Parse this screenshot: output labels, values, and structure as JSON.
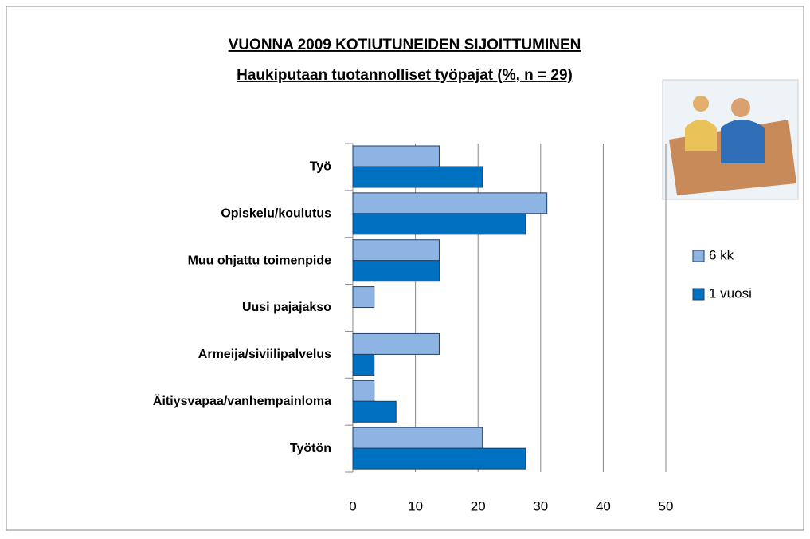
{
  "chart_data": {
    "type": "barh",
    "title": "VUONNA 2009 KOTIUTUNEIDEN SIJOITTUMINEN",
    "subtitle": "Haukiputaan tuotannolliset työpajat  (%,  n = 29)",
    "categories": [
      "Työ",
      "Opiskelu/koulutus",
      "Muu ohjattu toimenpide",
      "Uusi pajajakso",
      "Armeija/siviilipalvelus",
      "Äitiysvapaa/vanhempainloma",
      "Työtön"
    ],
    "series": [
      {
        "name": "6 kk",
        "color": "#8db4e2",
        "values": [
          13.8,
          31,
          13.8,
          3.4,
          13.8,
          3.4,
          20.7
        ]
      },
      {
        "name": "1 vuosi",
        "color": "#0070c0",
        "values": [
          20.7,
          27.6,
          13.8,
          0,
          3.4,
          6.9,
          27.6
        ]
      }
    ],
    "xlim": [
      0,
      50
    ],
    "xticks": [
      0,
      10,
      20,
      30,
      40,
      50
    ],
    "grid": true
  }
}
